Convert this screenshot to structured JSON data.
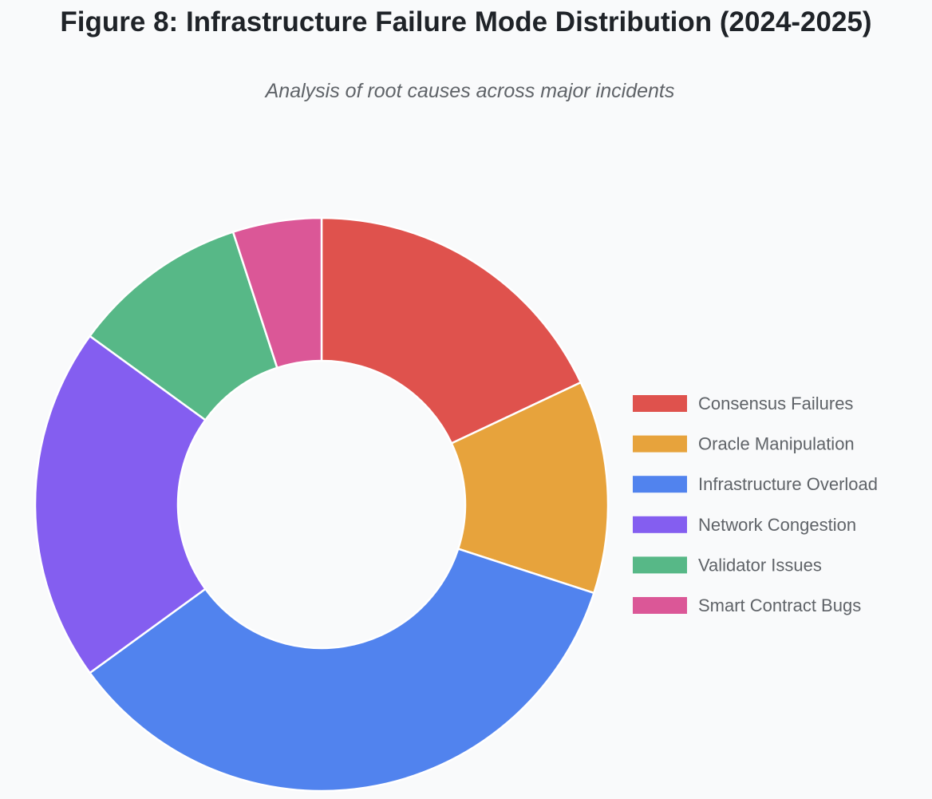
{
  "title": "Figure 8: Infrastructure Failure Mode Distribution (2024-2025)",
  "subtitle": "Analysis of root causes across major incidents",
  "chart_data": {
    "type": "pie",
    "variant": "doughnut",
    "legend_position": "right",
    "categories": [
      "Consensus Failures",
      "Oracle Manipulation",
      "Infrastructure Overload",
      "Network Congestion",
      "Validator Issues",
      "Smart Contract Bugs"
    ],
    "values": [
      18,
      12,
      35,
      20,
      10,
      5
    ],
    "colors": [
      "#df524d",
      "#e7a33c",
      "#5183ee",
      "#845ef0",
      "#57b887",
      "#db5797"
    ]
  }
}
